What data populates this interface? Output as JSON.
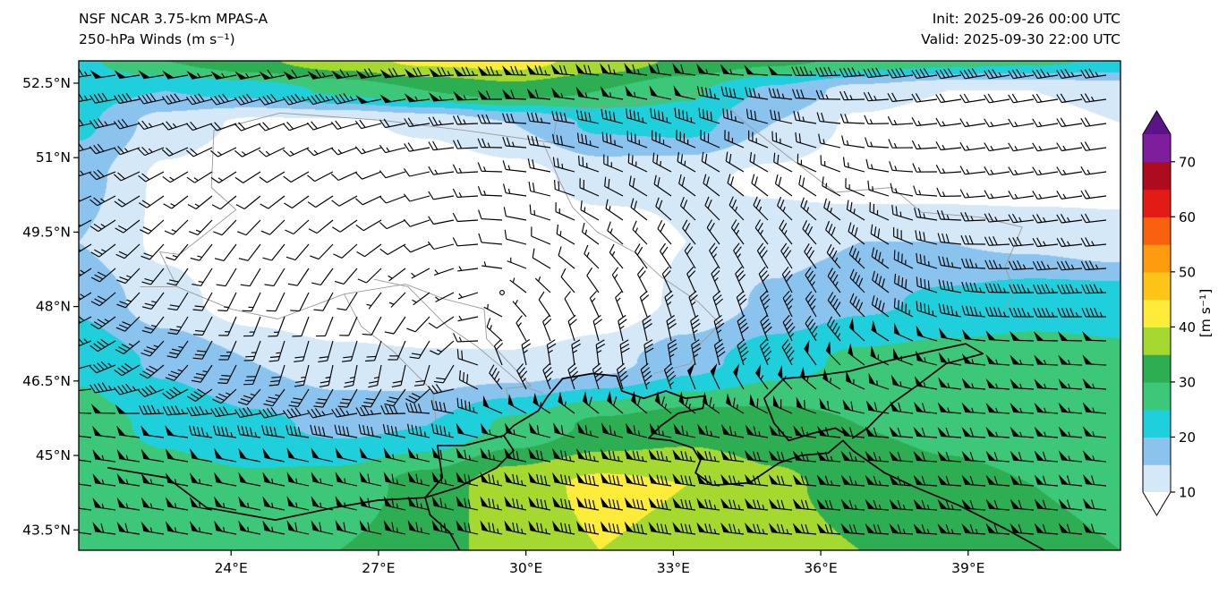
{
  "header": {
    "title_line1": "NSF NCAR 3.75-km MPAS-A",
    "title_line2": "250-hPa Winds (m s⁻¹)",
    "init_label": "Init: 2025-09-26 00:00 UTC",
    "valid_label": "Valid: 2025-09-30 22:00 UTC"
  },
  "style": {
    "background": "#ffffff",
    "text_color": "#000000",
    "frame_color": "#000000",
    "coast_color": "#000000",
    "border_color": "#9a9a9a"
  },
  "chart_data": {
    "type": "heatmap",
    "title": "NSF NCAR 3.75-km MPAS-A",
    "subtitle": "250-hPa Winds (m s⁻¹)",
    "init_time": "2025-09-26 00:00 UTC",
    "valid_time": "2025-09-30 22:00 UTC",
    "variable": "250-hPa wind speed with wind barbs",
    "units": "m s⁻¹",
    "x_axis": {
      "tick_labels": [
        "24°E",
        "27°E",
        "30°E",
        "33°E",
        "36°E",
        "39°E"
      ],
      "tick_lons": [
        24,
        27,
        30,
        33,
        36,
        39
      ]
    },
    "y_axis": {
      "tick_labels": [
        "52.5°N",
        "51°N",
        "49.5°N",
        "48°N",
        "46.5°N",
        "45°N",
        "43.5°N"
      ],
      "tick_lats": [
        52.5,
        51,
        49.5,
        48,
        46.5,
        45,
        43.5
      ]
    },
    "extent": {
      "lon_min": 20.9,
      "lon_max": 42.1,
      "lat_min": 43.09,
      "lat_max": 52.95
    },
    "colorbar": {
      "label": "[m s⁻¹]",
      "ticks": [
        10,
        20,
        30,
        40,
        50,
        60,
        70
      ],
      "level_min": 10,
      "level_step": 5,
      "level_max": 75,
      "under_color": "#ffffff",
      "bin_colors": [
        "#d5e8f8",
        "#8ac4ee",
        "#1fd0dc",
        "#3cc878",
        "#2eae52",
        "#a6d930",
        "#fdec3a",
        "#fec417",
        "#fd9a0d",
        "#f8600e",
        "#e31b16",
        "#ad0c1e",
        "#7e1e9c"
      ],
      "over_color": "#5c1387"
    },
    "wind_grid": {
      "lons": [
        20.9,
        22.67,
        24.43,
        26.2,
        27.97,
        29.73,
        31.5,
        33.27,
        35.03,
        36.8,
        38.57,
        40.33,
        42.1
      ],
      "lats": [
        52.95,
        52.35,
        51.7,
        50.6,
        49.3,
        48.1,
        46.9,
        45.6,
        44.4,
        43.09
      ],
      "speed_ms": [
        [
          24,
          30,
          34,
          38,
          41,
          42,
          38,
          34,
          31,
          29,
          27,
          26,
          24
        ],
        [
          22,
          20,
          22,
          26,
          30,
          33,
          30,
          26,
          19,
          13,
          10,
          10,
          12
        ],
        [
          21,
          13,
          9,
          9,
          11,
          15,
          21,
          22,
          15,
          9,
          7,
          8,
          10
        ],
        [
          17,
          9,
          6,
          5,
          6,
          8,
          12,
          11,
          9,
          7,
          7,
          7,
          8
        ],
        [
          15,
          9,
          5,
          4,
          4,
          5,
          7,
          10,
          13,
          15,
          15,
          14,
          12
        ],
        [
          19,
          12,
          7,
          4,
          3,
          1,
          6,
          11,
          16,
          19,
          21,
          23,
          23
        ],
        [
          24,
          19,
          15,
          12,
          11,
          11,
          13,
          18,
          23,
          26,
          27,
          27,
          26
        ],
        [
          27,
          24,
          21,
          19,
          20,
          26,
          31,
          33,
          32,
          30,
          29,
          28,
          27
        ],
        [
          29,
          27,
          26,
          27,
          32,
          38,
          41,
          40,
          36,
          33,
          31,
          30,
          29
        ],
        [
          30,
          29,
          28,
          30,
          33,
          37,
          40,
          39,
          37,
          35,
          33,
          31,
          30
        ]
      ]
    },
    "flow_center": {
      "lon": 29.5,
      "lat": 48.3
    },
    "barbs": {
      "half_barb_ms": 2.5,
      "full_barb_ms": 5,
      "pennant_ms": 25
    },
    "geo": {
      "coastlines": [
        [
          [
            28.65,
            43.09
          ],
          [
            28.45,
            43.45
          ],
          [
            28.05,
            43.8
          ],
          [
            27.95,
            44.15
          ],
          [
            28.6,
            44.35
          ],
          [
            29.4,
            44.75
          ],
          [
            29.75,
            45.1
          ],
          [
            29.55,
            45.4
          ],
          [
            29.75,
            45.6
          ],
          [
            30.25,
            45.9
          ],
          [
            30.45,
            46.2
          ],
          [
            30.75,
            46.55
          ],
          [
            31.35,
            46.65
          ],
          [
            31.85,
            46.6
          ],
          [
            31.95,
            46.3
          ],
          [
            32.4,
            46.15
          ],
          [
            32.85,
            46.3
          ],
          [
            33.25,
            46.15
          ],
          [
            33.65,
            46.2
          ],
          [
            33.6,
            45.95
          ],
          [
            33.1,
            45.85
          ],
          [
            32.75,
            45.6
          ],
          [
            32.5,
            45.35
          ],
          [
            32.95,
            45.3
          ],
          [
            33.4,
            45.15
          ],
          [
            33.55,
            44.9
          ],
          [
            33.45,
            44.65
          ],
          [
            33.8,
            44.4
          ],
          [
            34.55,
            44.45
          ],
          [
            35.15,
            44.85
          ],
          [
            35.6,
            45.0
          ],
          [
            36.15,
            45.05
          ],
          [
            36.45,
            45.3
          ],
          [
            36.65,
            45.1
          ],
          [
            37.3,
            44.65
          ],
          [
            37.95,
            44.35
          ],
          [
            38.8,
            44.0
          ],
          [
            39.8,
            43.5
          ],
          [
            40.55,
            43.09
          ]
        ],
        [
          [
            36.55,
            45.4
          ],
          [
            36.3,
            45.55
          ],
          [
            35.85,
            45.45
          ],
          [
            35.35,
            45.3
          ],
          [
            35.05,
            45.65
          ],
          [
            34.85,
            46.15
          ],
          [
            35.25,
            46.55
          ],
          [
            35.85,
            46.6
          ],
          [
            36.6,
            46.7
          ],
          [
            37.35,
            46.9
          ],
          [
            38.25,
            47.1
          ],
          [
            38.95,
            47.25
          ],
          [
            39.3,
            47.05
          ],
          [
            38.55,
            46.85
          ],
          [
            37.95,
            46.4
          ],
          [
            37.45,
            46.05
          ],
          [
            36.95,
            45.55
          ],
          [
            36.65,
            45.35
          ]
        ],
        [
          [
            21.5,
            44.75
          ],
          [
            22.7,
            44.55
          ],
          [
            23.5,
            43.95
          ],
          [
            24.9,
            43.7
          ],
          [
            26.1,
            43.95
          ],
          [
            27.0,
            44.1
          ],
          [
            27.95,
            44.15
          ],
          [
            28.3,
            44.55
          ],
          [
            28.2,
            45.2
          ],
          [
            28.75,
            45.2
          ],
          [
            29.55,
            45.4
          ]
        ]
      ],
      "rivers": [
        [
          [
            30.35,
            51.3
          ],
          [
            30.7,
            50.5
          ],
          [
            30.95,
            50.0
          ],
          [
            31.45,
            49.5
          ],
          [
            32.2,
            49.1
          ],
          [
            32.75,
            48.6
          ],
          [
            33.5,
            48.1
          ],
          [
            33.95,
            47.65
          ],
          [
            33.5,
            47.2
          ],
          [
            33.35,
            46.85
          ],
          [
            32.6,
            46.65
          ]
        ],
        [
          [
            30.35,
            46.25
          ],
          [
            29.95,
            46.4
          ],
          [
            29.6,
            46.7
          ],
          [
            29.0,
            47.2
          ],
          [
            28.4,
            47.6
          ],
          [
            27.6,
            48.4
          ],
          [
            26.9,
            48.55
          ]
        ]
      ],
      "borders": [
        [
          [
            23.65,
            51.55
          ],
          [
            25.0,
            51.9
          ],
          [
            27.1,
            51.75
          ],
          [
            28.75,
            51.55
          ],
          [
            30.55,
            51.3
          ],
          [
            30.65,
            51.95
          ],
          [
            32.2,
            52.1
          ],
          [
            33.8,
            52.35
          ],
          [
            34.4,
            51.75
          ],
          [
            35.3,
            51.05
          ],
          [
            36.3,
            50.3
          ],
          [
            37.45,
            50.4
          ],
          [
            38.05,
            49.9
          ],
          [
            39.25,
            49.8
          ],
          [
            40.1,
            49.6
          ],
          [
            39.75,
            48.8
          ],
          [
            39.95,
            48.3
          ],
          [
            39.7,
            47.85
          ]
        ],
        [
          [
            23.65,
            51.55
          ],
          [
            23.6,
            50.4
          ],
          [
            24.1,
            49.95
          ],
          [
            22.95,
            49.05
          ],
          [
            22.55,
            49.1
          ],
          [
            22.9,
            48.4
          ],
          [
            22.15,
            48.4
          ]
        ],
        [
          [
            22.9,
            48.4
          ],
          [
            24.0,
            47.95
          ],
          [
            24.95,
            47.75
          ],
          [
            26.3,
            48.25
          ],
          [
            27.55,
            48.45
          ],
          [
            28.35,
            48.15
          ],
          [
            29.15,
            47.95
          ],
          [
            29.2,
            47.35
          ],
          [
            30.1,
            46.4
          ],
          [
            29.6,
            46.35
          ],
          [
            29.75,
            45.6
          ]
        ],
        [
          [
            26.3,
            48.25
          ],
          [
            26.65,
            47.6
          ],
          [
            27.3,
            47.1
          ],
          [
            28.1,
            46.3
          ],
          [
            28.2,
            45.45
          ]
        ]
      ]
    }
  }
}
